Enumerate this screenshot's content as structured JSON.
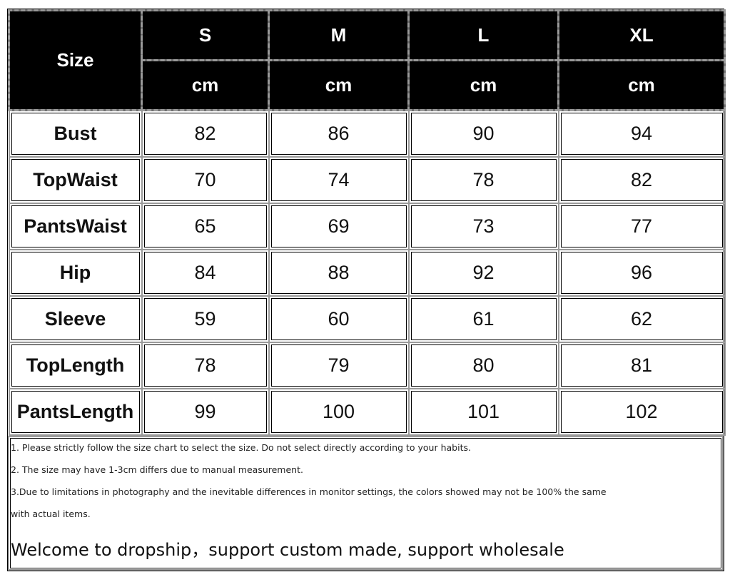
{
  "table": {
    "corner_label": "Size",
    "sizes": [
      "S",
      "M",
      "L",
      "XL"
    ],
    "units": [
      "cm",
      "cm",
      "cm",
      "cm"
    ],
    "rows": [
      {
        "label": "Bust",
        "values": [
          "82",
          "86",
          "90",
          "94"
        ]
      },
      {
        "label": "TopWaist",
        "values": [
          "70",
          "74",
          "78",
          "82"
        ]
      },
      {
        "label": "PantsWaist",
        "values": [
          "65",
          "69",
          "73",
          "77"
        ]
      },
      {
        "label": "Hip",
        "values": [
          "84",
          "88",
          "92",
          "96"
        ]
      },
      {
        "label": "Sleeve",
        "values": [
          "59",
          "60",
          "61",
          "62"
        ]
      },
      {
        "label": "TopLength",
        "values": [
          "78",
          "79",
          "80",
          "81"
        ]
      },
      {
        "label": "PantsLength",
        "values": [
          "99",
          "100",
          "101",
          "102"
        ]
      }
    ]
  },
  "notes": {
    "lines": [
      "1. Please strictly follow the size chart to select the size. Do not select directly according to your habits.",
      "2. The size may have 1-3cm differs due to manual measurement.",
      "3.Due to limitations in photography and the inevitable differences in monitor settings, the colors showed may not be 100% the same",
      "with actual items."
    ],
    "welcome": "Welcome to dropship，support custom made, support wholesale"
  },
  "colors": {
    "header_bg": "#000000",
    "header_text": "#ffffff",
    "border": "#9a9a9a"
  }
}
